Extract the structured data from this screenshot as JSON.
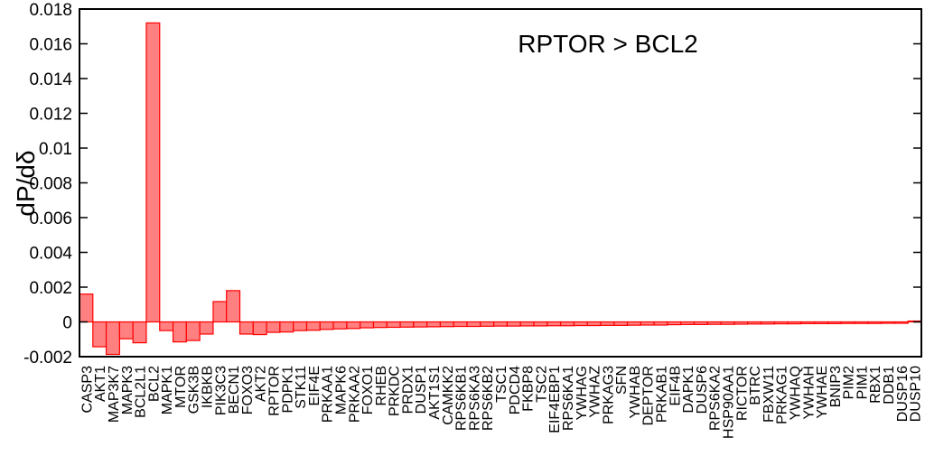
{
  "chart_data": {
    "type": "bar",
    "title": "",
    "annotation": "RPTOR > BCL2",
    "xlabel": "",
    "ylabel": "dP/dδ",
    "ylim": [
      -0.002,
      0.018
    ],
    "yticks": [
      -0.002,
      0,
      0.002,
      0.004,
      0.006,
      0.008,
      0.01,
      0.012,
      0.014,
      0.016,
      0.018
    ],
    "ytick_labels": [
      "-0.002",
      "0",
      "0.002",
      "0.004",
      "0.006",
      "0.008",
      "0.01",
      "0.012",
      "0.014",
      "0.016",
      "0.018"
    ],
    "grid": false,
    "bar_color": "#ff8080",
    "bar_edge_color": "#ff0000",
    "categories": [
      "CASP3",
      "AKT1",
      "MAP3K7",
      "MAPK3",
      "BCL2L1",
      "BCL2",
      "MAPK1",
      "MTOR",
      "GSK3B",
      "IKBKB",
      "PIK3C3",
      "BECN1",
      "FOXO3",
      "AKT2",
      "RPTOR",
      "PDPK1",
      "STK11",
      "EIF4E",
      "PRKAA1",
      "MAPK6",
      "PRKAA2",
      "FOXO1",
      "RHEB",
      "PRKDC",
      "PRDX1",
      "DUSP1",
      "AKT1S1",
      "CAMKK2",
      "RPS6KB1",
      "RPS6KA3",
      "RPS6KB2",
      "TSC1",
      "PDCD4",
      "FKBP8",
      "TSC2",
      "EIF4EBP1",
      "RPS6KA1",
      "YWHAG",
      "YWHAZ",
      "PRKAG3",
      "SFN",
      "YWHAB",
      "DEPTOR",
      "PRKAB1",
      "EIF4B",
      "DAPK1",
      "DUSP6",
      "RPS6KA2",
      "HSP90AA1",
      "RICTOR",
      "BTRC",
      "FBXW11",
      "PRKAG1",
      "YWHAQ",
      "YWHAH",
      "YWHAE",
      "BNIP3",
      "PIM2",
      "PIM1",
      "RBX1",
      "DDB1",
      "DUSP16",
      "DUSP10"
    ],
    "values": [
      0.0016,
      -0.00143,
      -0.00187,
      -0.00097,
      -0.0012,
      0.0172,
      -0.0005,
      -0.00115,
      -0.00107,
      -0.0007,
      0.00117,
      0.0018,
      -0.0007,
      -0.00073,
      -0.0006,
      -0.00058,
      -0.0005,
      -0.00048,
      -0.00043,
      -0.0004,
      -0.00038,
      -0.00034,
      -0.00032,
      -0.00031,
      -0.0003,
      -0.00029,
      -0.00028,
      -0.00027,
      -0.00026,
      -0.00026,
      -0.00025,
      -0.00024,
      -0.00024,
      -0.00023,
      -0.00023,
      -0.00022,
      -0.00022,
      -0.00021,
      -0.00021,
      -0.0002,
      -0.0002,
      -0.00019,
      -0.00018,
      -0.00018,
      -0.00016,
      -0.00015,
      -0.00015,
      -0.00014,
      -0.00014,
      -0.00013,
      -0.00012,
      -0.00012,
      -0.00011,
      -0.00011,
      -0.0001,
      -0.0001,
      -0.0001,
      -9e-05,
      -9e-05,
      -9e-05,
      -8e-05,
      -8e-05,
      5e-05
    ]
  }
}
